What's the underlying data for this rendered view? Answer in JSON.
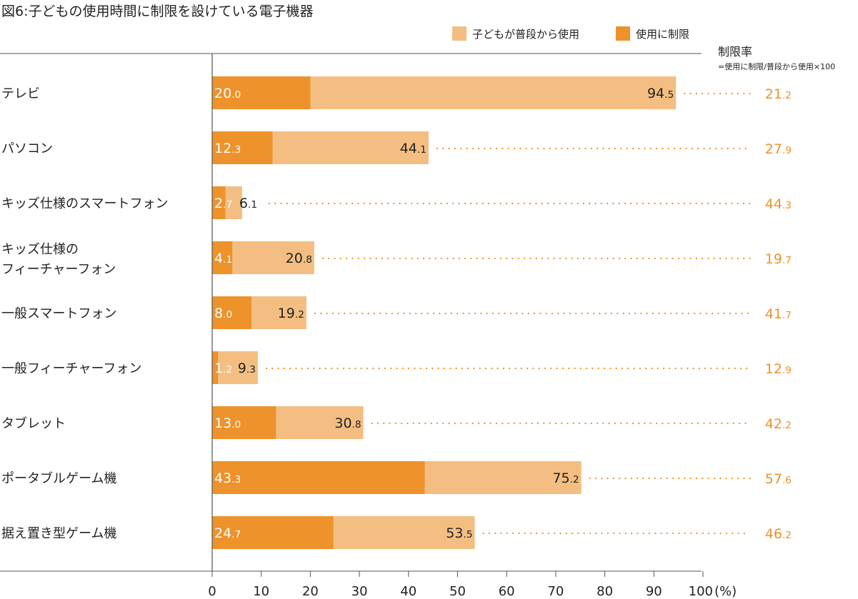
{
  "chart_data": {
    "type": "bar",
    "orientation": "horizontal",
    "stacking": "overlay",
    "title": "図6:子どもの使用時間に制限を設けている電子機器",
    "categories": [
      "テレビ",
      "パソコン",
      "キッズ仕様のスマートフォン",
      "キッズ仕様の\nフィーチャーフォン",
      "一般スマートフォン",
      "一般フィーチャーフォン",
      "タブレット",
      "ポータブルゲーム機",
      "据え置き型ゲーム機"
    ],
    "series": [
      {
        "name": "子どもが普段から使用",
        "color": "#F4BE82",
        "values": [
          94.5,
          44.1,
          6.1,
          20.8,
          19.2,
          9.3,
          30.8,
          75.2,
          53.5
        ]
      },
      {
        "name": "使用に制限",
        "color": "#EE922B",
        "values": [
          20.0,
          12.3,
          2.7,
          4.1,
          8.0,
          1.2,
          13.0,
          43.3,
          24.7
        ]
      }
    ],
    "rate": {
      "header": "制限率",
      "formula": "=使用に制限/普段から使用×100",
      "color": "#EE922B",
      "values": [
        21.2,
        27.9,
        44.3,
        19.7,
        41.7,
        12.9,
        42.2,
        57.6,
        46.2
      ]
    },
    "xlim": [
      0,
      100
    ],
    "xticks": [
      0,
      10,
      20,
      30,
      40,
      50,
      60,
      70,
      80,
      90,
      100
    ],
    "x_unit": "(%)",
    "legend_position": "top-right"
  }
}
